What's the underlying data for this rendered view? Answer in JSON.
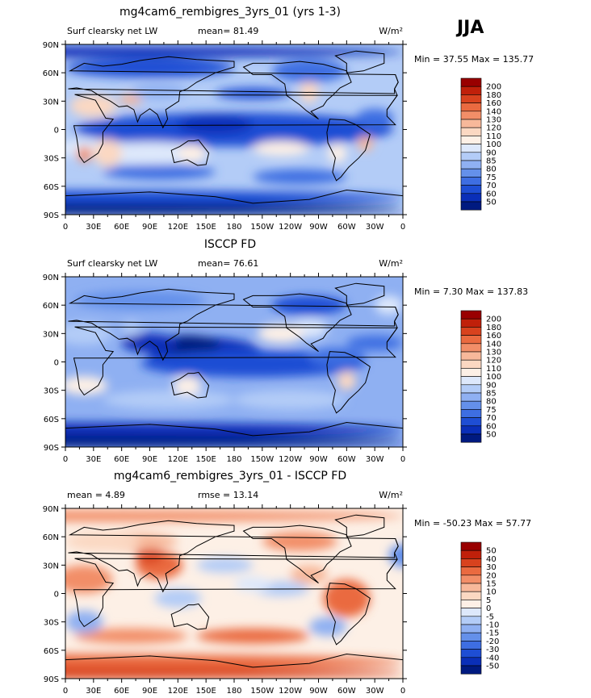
{
  "season": "JJA",
  "chart_data": [
    {
      "type": "heatmap",
      "title": "mg4cam6_rembigres_3yrs_01 (yrs 1-3)",
      "left_label": "Surf clearsky net LW",
      "center_label": "mean=   81.49",
      "units": "W/m²",
      "minmax": "Min =   37.55 Max =  135.77",
      "stats": {
        "mean": 81.49,
        "min": 37.55,
        "max": 135.77
      },
      "xlim": [
        0,
        360
      ],
      "ylim": [
        -90,
        90
      ],
      "x_ticks": [
        "0",
        "30E",
        "60E",
        "90E",
        "120E",
        "150E",
        "180",
        "150W",
        "120W",
        "90W",
        "60W",
        "30W",
        "0"
      ],
      "y_ticks": [
        "90N",
        "60N",
        "30N",
        "0",
        "30S",
        "60S",
        "90S"
      ],
      "levels": [
        "200",
        "180",
        "160",
        "140",
        "130",
        "120",
        "110",
        "100",
        "90",
        "85",
        "80",
        "75",
        "70",
        "60",
        "50"
      ],
      "colors": [
        "#990000",
        "#c0200a",
        "#d8421e",
        "#ea6a40",
        "#f28e68",
        "#f7b89a",
        "#fbd8c2",
        "#fdf0e6",
        "#dde8fb",
        "#b3ccf7",
        "#8fb0f2",
        "#6490ea",
        "#3e6ee2",
        "#1e4ed4",
        "#0a2fb8",
        "#001a80"
      ]
    },
    {
      "type": "heatmap",
      "title": "ISCCP FD",
      "left_label": "Surf clearsky net LW",
      "center_label": "mean=   76.61",
      "units": "W/m²",
      "minmax": "Min =    7.30 Max =  137.83",
      "stats": {
        "mean": 76.61,
        "min": 7.3,
        "max": 137.83
      },
      "xlim": [
        0,
        360
      ],
      "ylim": [
        -90,
        90
      ],
      "x_ticks": [
        "0",
        "30E",
        "60E",
        "90E",
        "120E",
        "150E",
        "180",
        "150W",
        "120W",
        "90W",
        "60W",
        "30W",
        "0"
      ],
      "y_ticks": [
        "90N",
        "60N",
        "30N",
        "0",
        "30S",
        "60S",
        "90S"
      ],
      "levels": [
        "200",
        "180",
        "160",
        "140",
        "130",
        "120",
        "110",
        "100",
        "90",
        "85",
        "80",
        "75",
        "70",
        "60",
        "50"
      ],
      "colors": [
        "#990000",
        "#c0200a",
        "#d8421e",
        "#ea6a40",
        "#f28e68",
        "#f7b89a",
        "#fbd8c2",
        "#fdf0e6",
        "#dde8fb",
        "#b3ccf7",
        "#8fb0f2",
        "#6490ea",
        "#3e6ee2",
        "#1e4ed4",
        "#0a2fb8",
        "#001a80"
      ]
    },
    {
      "type": "heatmap",
      "title": "mg4cam6_rembigres_3yrs_01 - ISCCP FD",
      "left_label": "mean =    4.89",
      "center_label": "rmse =   13.14",
      "units": "W/m²",
      "minmax": "Min = -50.23 Max =   57.77",
      "stats": {
        "mean": 4.89,
        "rmse": 13.14,
        "min": -50.23,
        "max": 57.77
      },
      "xlim": [
        0,
        360
      ],
      "ylim": [
        -90,
        90
      ],
      "x_ticks": [
        "0",
        "30E",
        "60E",
        "90E",
        "120E",
        "150E",
        "180",
        "150W",
        "120W",
        "90W",
        "60W",
        "30W",
        "0"
      ],
      "y_ticks": [
        "90N",
        "60N",
        "30N",
        "0",
        "30S",
        "60S",
        "90S"
      ],
      "levels": [
        "50",
        "40",
        "30",
        "20",
        "15",
        "10",
        "5",
        "0",
        "-5",
        "-10",
        "-15",
        "-20",
        "-30",
        "-40",
        "-50"
      ],
      "colors": [
        "#990000",
        "#c0200a",
        "#d8421e",
        "#ea6a40",
        "#f28e68",
        "#f7b89a",
        "#fbd8c2",
        "#fdf0e6",
        "#dde8fb",
        "#b3ccf7",
        "#8fb0f2",
        "#6490ea",
        "#3e6ee2",
        "#1e4ed4",
        "#0a2fb8",
        "#001a80"
      ]
    }
  ]
}
